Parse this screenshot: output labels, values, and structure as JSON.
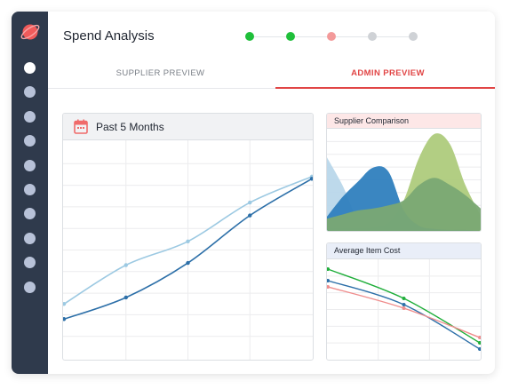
{
  "app": {
    "title": "Spend Analysis"
  },
  "steps": [
    {
      "state": "complete",
      "color": "#1fbf3a"
    },
    {
      "state": "complete",
      "color": "#1fbf3a"
    },
    {
      "state": "current",
      "color": "#f39a9a"
    },
    {
      "state": "pending",
      "color": "#cfd2d6"
    },
    {
      "state": "pending",
      "color": "#cfd2d6"
    }
  ],
  "sidebar": {
    "items": [
      "item-1",
      "item-2",
      "item-3",
      "item-4",
      "item-5",
      "item-6",
      "item-7",
      "item-8",
      "item-9",
      "item-10"
    ],
    "active_index": 0
  },
  "tabs": [
    {
      "label": "SUPPLIER PREVIEW",
      "active": false
    },
    {
      "label": "ADMIN PREVIEW",
      "active": true
    }
  ],
  "main_panel": {
    "title": "Past 5 Months",
    "icon": "calendar-icon"
  },
  "supplier_panel": {
    "title": "Supplier Comparison"
  },
  "cost_panel": {
    "title": "Average Item Cost"
  },
  "colors": {
    "accent": "#e14545",
    "sidebar": "#2f3a4c",
    "line_dark": "#2c6fa8",
    "line_light": "#9cc9e2"
  },
  "chart_data": [
    {
      "type": "line",
      "title": "Past 5 Months",
      "x": [
        1,
        2,
        3,
        4,
        5
      ],
      "ylim": [
        0,
        100
      ],
      "grid": true,
      "series": [
        {
          "values": [
            25,
            43,
            54,
            72,
            84
          ],
          "color": "#9cc9e2"
        },
        {
          "values": [
            18,
            28,
            44,
            66,
            83
          ],
          "color": "#2c6fa8"
        }
      ]
    },
    {
      "type": "area",
      "title": "Supplier Comparison",
      "series": [
        {
          "values": [
            72,
            45,
            12,
            8,
            5,
            4,
            3,
            3,
            4,
            5,
            6
          ],
          "color": "#b9d7ea"
        },
        {
          "values": [
            14,
            33,
            48,
            62,
            58,
            20,
            5,
            2,
            1,
            1,
            0
          ],
          "color": "#2f7fbe"
        },
        {
          "values": [
            12,
            16,
            20,
            22,
            25,
            30,
            45,
            52,
            45,
            35,
            22
          ],
          "color": "#7aa873"
        },
        {
          "values": [
            2,
            2,
            2,
            3,
            8,
            30,
            72,
            95,
            85,
            45,
            15
          ],
          "color": "#aecb7c"
        }
      ]
    },
    {
      "type": "line",
      "title": "Average Item Cost",
      "x": [
        1,
        2,
        3
      ],
      "ylim": [
        0,
        100
      ],
      "grid": true,
      "series": [
        {
          "values": [
            95,
            62,
            12
          ],
          "color": "#1fae3a"
        },
        {
          "values": [
            82,
            55,
            5
          ],
          "color": "#2c6fa8"
        },
        {
          "values": [
            75,
            51,
            18
          ],
          "color": "#ef8d8d"
        }
      ]
    }
  ]
}
